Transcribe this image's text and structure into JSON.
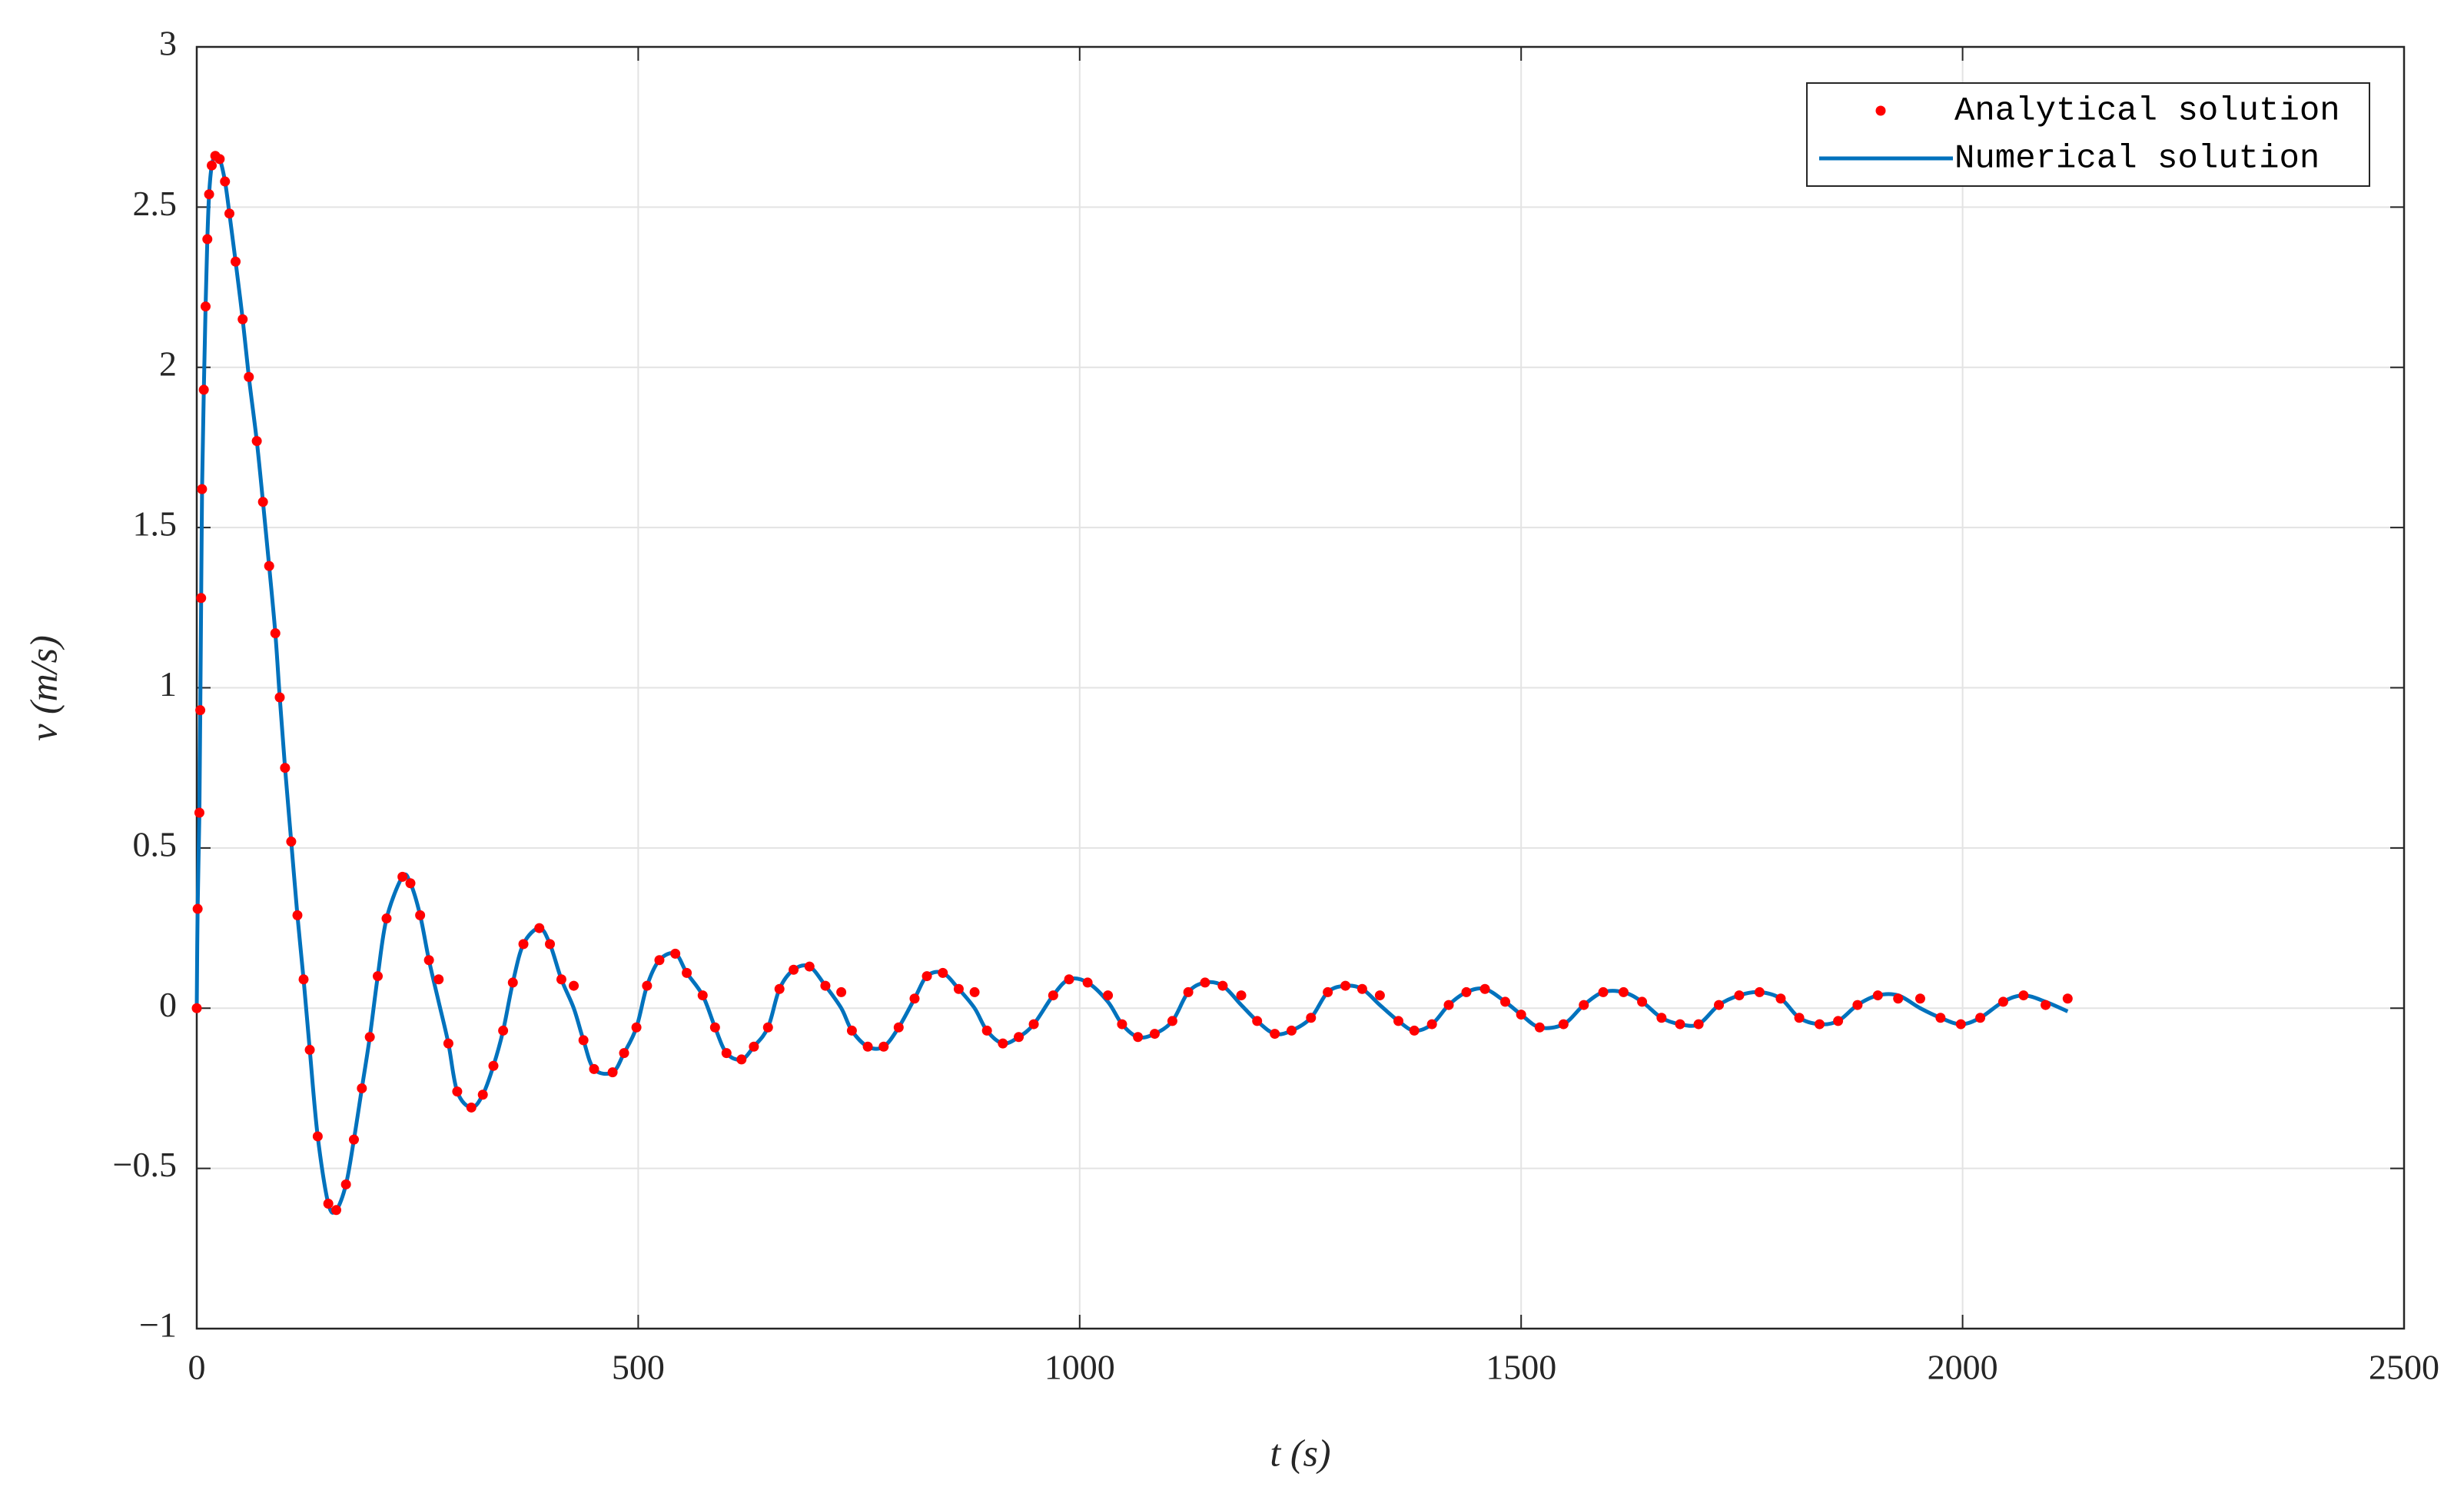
{
  "chart_data": {
    "type": "line",
    "xlabel": "t (s)",
    "ylabel": "v (m/s)",
    "x": [
      0,
      1,
      3,
      4,
      5,
      6,
      8,
      10,
      12,
      14,
      17,
      21,
      26,
      32,
      37,
      44,
      52,
      59,
      68,
      75,
      82,
      89,
      94,
      100,
      107,
      114,
      121,
      128,
      137,
      149,
      158,
      169,
      178,
      187,
      196,
      205,
      215,
      233,
      242,
      253,
      263,
      274,
      285,
      295,
      311,
      324,
      336,
      347,
      358,
      370,
      388,
      400,
      413,
      427,
      438,
      450,
      471,
      484,
      498,
      510,
      524,
      542,
      555,
      573,
      587,
      600,
      617,
      631,
      647,
      660,
      676,
      694,
      712,
      730,
      742,
      760,
      778,
      795,
      813,
      827,
      845,
      863,
      881,
      895,
      913,
      931,
      948,
      970,
      988,
      1009,
      1032,
      1048,
      1066,
      1085,
      1105,
      1123,
      1142,
      1162,
      1183,
      1201,
      1221,
      1240,
      1262,
      1281,
      1301,
      1320,
      1340,
      1361,
      1379,
      1399,
      1418,
      1438,
      1459,
      1482,
      1500,
      1521,
      1548,
      1571,
      1593,
      1616,
      1637,
      1659,
      1680,
      1701,
      1724,
      1747,
      1770,
      1794,
      1815,
      1838,
      1859,
      1881,
      1904,
      1927,
      1952,
      1975,
      1998,
      2020,
      2046,
      2069,
      2094,
      2119
    ],
    "series": [
      {
        "name": "Analytical solution",
        "mode": "markers",
        "color": "#ff0000",
        "values": [
          0,
          0.31,
          0.61,
          0.93,
          1.28,
          1.62,
          1.93,
          2.19,
          2.4,
          2.54,
          2.63,
          2.66,
          2.65,
          2.58,
          2.48,
          2.33,
          2.15,
          1.97,
          1.77,
          1.58,
          1.38,
          1.17,
          0.97,
          0.75,
          0.52,
          0.29,
          0.09,
          -0.13,
          -0.4,
          -0.61,
          -0.63,
          -0.55,
          -0.41,
          -0.25,
          -0.09,
          0.1,
          0.28,
          0.41,
          0.39,
          0.29,
          0.15,
          0.09,
          -0.11,
          -0.26,
          -0.31,
          -0.27,
          -0.18,
          -0.07,
          0.08,
          0.2,
          0.25,
          0.2,
          0.09,
          0.07,
          -0.1,
          -0.19,
          -0.2,
          -0.14,
          -0.06,
          0.07,
          0.15,
          0.17,
          0.11,
          0.04,
          -0.06,
          -0.14,
          -0.16,
          -0.12,
          -0.06,
          0.06,
          0.12,
          0.13,
          0.07,
          0.05,
          -0.07,
          -0.12,
          -0.12,
          -0.06,
          0.03,
          0.1,
          0.11,
          0.06,
          0.05,
          -0.07,
          -0.11,
          -0.09,
          -0.05,
          0.04,
          0.09,
          0.08,
          0.04,
          -0.05,
          -0.09,
          -0.08,
          -0.04,
          0.05,
          0.08,
          0.07,
          0.04,
          -0.04,
          -0.08,
          -0.07,
          -0.03,
          0.05,
          0.07,
          0.06,
          0.04,
          -0.04,
          -0.07,
          -0.05,
          0.01,
          0.05,
          0.06,
          0.02,
          -0.02,
          -0.06,
          -0.05,
          0.01,
          0.05,
          0.05,
          0.02,
          -0.03,
          -0.05,
          -0.05,
          0.01,
          0.04,
          0.05,
          0.03,
          -0.03,
          -0.05,
          -0.04,
          0.01,
          0.04,
          0.03,
          0.03,
          -0.03,
          -0.05,
          -0.03,
          0.02,
          0.04,
          0.01,
          0.03
        ]
      },
      {
        "name": "Numerical solution",
        "mode": "line",
        "color": "#0072bd",
        "values": [
          0,
          0.31,
          0.61,
          0.93,
          1.28,
          1.62,
          1.93,
          2.19,
          2.4,
          2.54,
          2.63,
          2.66,
          2.65,
          2.58,
          2.48,
          2.33,
          2.15,
          1.97,
          1.77,
          1.58,
          1.38,
          1.17,
          0.97,
          0.75,
          0.52,
          0.29,
          0.09,
          -0.13,
          -0.4,
          -0.61,
          -0.63,
          -0.55,
          -0.41,
          -0.25,
          -0.09,
          0.1,
          0.28,
          0.41,
          0.39,
          0.29,
          0.15,
          0.02,
          -0.11,
          -0.26,
          -0.31,
          -0.27,
          -0.18,
          -0.07,
          0.08,
          0.2,
          0.25,
          0.2,
          0.09,
          0.0,
          -0.1,
          -0.19,
          -0.2,
          -0.14,
          -0.06,
          0.07,
          0.15,
          0.17,
          0.11,
          0.04,
          -0.06,
          -0.14,
          -0.16,
          -0.12,
          -0.06,
          0.06,
          0.12,
          0.13,
          0.07,
          0.0,
          -0.07,
          -0.12,
          -0.12,
          -0.06,
          0.03,
          0.1,
          0.11,
          0.06,
          0.0,
          -0.07,
          -0.11,
          -0.09,
          -0.05,
          0.04,
          0.09,
          0.08,
          0.02,
          -0.05,
          -0.09,
          -0.08,
          -0.04,
          0.05,
          0.08,
          0.07,
          0.01,
          -0.04,
          -0.08,
          -0.07,
          -0.03,
          0.05,
          0.07,
          0.06,
          0.01,
          -0.04,
          -0.07,
          -0.05,
          0.01,
          0.05,
          0.06,
          0.02,
          -0.02,
          -0.06,
          -0.05,
          0.01,
          0.05,
          0.05,
          0.02,
          -0.03,
          -0.05,
          -0.05,
          0.01,
          0.04,
          0.05,
          0.03,
          -0.03,
          -0.05,
          -0.04,
          0.01,
          0.04,
          0.04,
          0.0,
          -0.03,
          -0.05,
          -0.03,
          0.02,
          0.04,
          0.02,
          -0.01
        ]
      }
    ],
    "xlim": [
      0,
      2500
    ],
    "xticks": [
      0,
      500,
      1000,
      1500,
      2000,
      2500
    ],
    "ylim": [
      -1,
      3
    ],
    "yticks": [
      {
        "value": -1,
        "label": "−1"
      },
      {
        "value": -0.5,
        "label": "−0.5"
      },
      0,
      0.5,
      1,
      1.5,
      2,
      2.5,
      3
    ],
    "grid": true,
    "legend": "northeast"
  }
}
